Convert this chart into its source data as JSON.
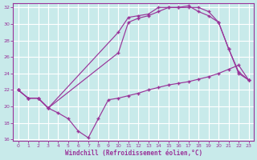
{
  "bg_color": "#c8eaea",
  "grid_color": "#b0d8d8",
  "line_color": "#993399",
  "xlim": [
    0,
    23
  ],
  "ylim": [
    16,
    32
  ],
  "yticks": [
    16,
    18,
    20,
    22,
    24,
    26,
    28,
    30,
    32
  ],
  "xticks": [
    0,
    1,
    2,
    3,
    4,
    5,
    6,
    7,
    8,
    9,
    10,
    11,
    12,
    13,
    14,
    15,
    16,
    17,
    18,
    19,
    20,
    21,
    22,
    23
  ],
  "xlabel": "Windchill (Refroidissement éolien,°C)",
  "curve1_x": [
    0,
    1,
    2,
    3,
    4,
    5,
    6,
    7,
    8,
    9,
    10,
    11,
    12,
    13,
    14,
    15,
    16,
    17,
    18,
    19,
    20,
    21,
    22,
    23
  ],
  "curve1_y": [
    22,
    21,
    21,
    19.8,
    19.2,
    18.5,
    17.0,
    16.2,
    18.5,
    20.8,
    21.0,
    21.3,
    21.6,
    22.0,
    22.3,
    22.6,
    22.8,
    23.0,
    23.3,
    23.6,
    24.0,
    24.5,
    25.0,
    23.2
  ],
  "curve2_x": [
    0,
    1,
    2,
    3,
    10,
    11,
    12,
    13,
    14,
    15,
    16,
    17,
    18,
    19,
    20,
    21,
    22,
    23
  ],
  "curve2_y": [
    22,
    21,
    21,
    19.8,
    26.5,
    30.2,
    30.7,
    31.0,
    31.5,
    32.0,
    32.0,
    32.0,
    32.0,
    31.5,
    30.2,
    27.0,
    24.0,
    23.2
  ],
  "curve3_x": [
    0,
    1,
    2,
    3,
    10,
    11,
    12,
    13,
    14,
    15,
    16,
    17,
    18,
    19,
    20,
    21,
    22,
    23
  ],
  "curve3_y": [
    22,
    21,
    21,
    19.8,
    29.0,
    30.8,
    31.0,
    31.2,
    32.0,
    32.0,
    32.0,
    32.2,
    31.5,
    31.0,
    30.2,
    27.0,
    24.2,
    23.2
  ]
}
